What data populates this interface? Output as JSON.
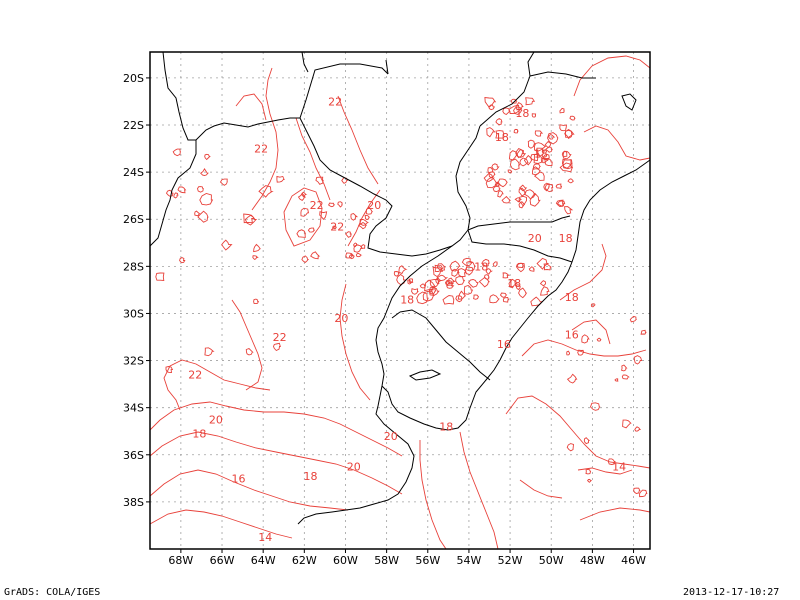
{
  "footer": {
    "software": "GrADS: COLA/IGES",
    "timestamp": "2013-12-17-10:27"
  },
  "map": {
    "projection": "lat-lon",
    "lon_range": [
      -69.5,
      -45.2
    ],
    "lat_range": [
      -40.0,
      -18.9
    ],
    "grid": true,
    "x_ticks": [
      "68W",
      "66W",
      "64W",
      "62W",
      "60W",
      "58W",
      "56W",
      "54W",
      "52W",
      "50W",
      "48W",
      "46W"
    ],
    "y_ticks": [
      "20S",
      "22S",
      "24S",
      "26S",
      "28S",
      "30S",
      "32S",
      "34S",
      "36S",
      "38S"
    ],
    "colors": {
      "contour": "#e8413a",
      "border": "#000000",
      "grid": "#a0a0a0"
    },
    "contour_labels": [
      {
        "text": "22",
        "lon": -60.5,
        "lat": -21.0
      },
      {
        "text": "22",
        "lon": -64.1,
        "lat": -23.0
      },
      {
        "text": "22",
        "lon": -61.4,
        "lat": -25.4
      },
      {
        "text": "22",
        "lon": -60.4,
        "lat": -26.3
      },
      {
        "text": "20",
        "lon": -58.6,
        "lat": -25.4
      },
      {
        "text": "20",
        "lon": -60.2,
        "lat": -30.2
      },
      {
        "text": "22",
        "lon": -63.2,
        "lat": -31.0
      },
      {
        "text": "22",
        "lon": -67.3,
        "lat": -32.6
      },
      {
        "text": "20",
        "lon": -66.3,
        "lat": -34.5
      },
      {
        "text": "18",
        "lon": -67.1,
        "lat": -35.1
      },
      {
        "text": "16",
        "lon": -65.2,
        "lat": -37.0
      },
      {
        "text": "18",
        "lon": -61.7,
        "lat": -36.9
      },
      {
        "text": "20",
        "lon": -59.6,
        "lat": -36.5
      },
      {
        "text": "20",
        "lon": -57.8,
        "lat": -35.2
      },
      {
        "text": "18",
        "lon": -55.1,
        "lat": -34.8
      },
      {
        "text": "14",
        "lon": -63.9,
        "lat": -39.5
      },
      {
        "text": "18",
        "lon": -57.0,
        "lat": -29.4
      },
      {
        "text": "18",
        "lon": -53.4,
        "lat": -28.0
      },
      {
        "text": "18",
        "lon": -51.8,
        "lat": -28.7
      },
      {
        "text": "20",
        "lon": -50.8,
        "lat": -26.8
      },
      {
        "text": "18",
        "lon": -49.3,
        "lat": -26.8
      },
      {
        "text": "18",
        "lon": -49.0,
        "lat": -29.3
      },
      {
        "text": "16",
        "lon": -49.0,
        "lat": -30.9
      },
      {
        "text": "16",
        "lon": -52.3,
        "lat": -31.3
      },
      {
        "text": "18",
        "lon": -51.4,
        "lat": -21.5
      },
      {
        "text": "18",
        "lon": -52.4,
        "lat": -22.5
      },
      {
        "text": "18",
        "lon": -50.5,
        "lat": -23.2
      },
      {
        "text": "14",
        "lon": -46.7,
        "lat": -36.5
      }
    ]
  }
}
